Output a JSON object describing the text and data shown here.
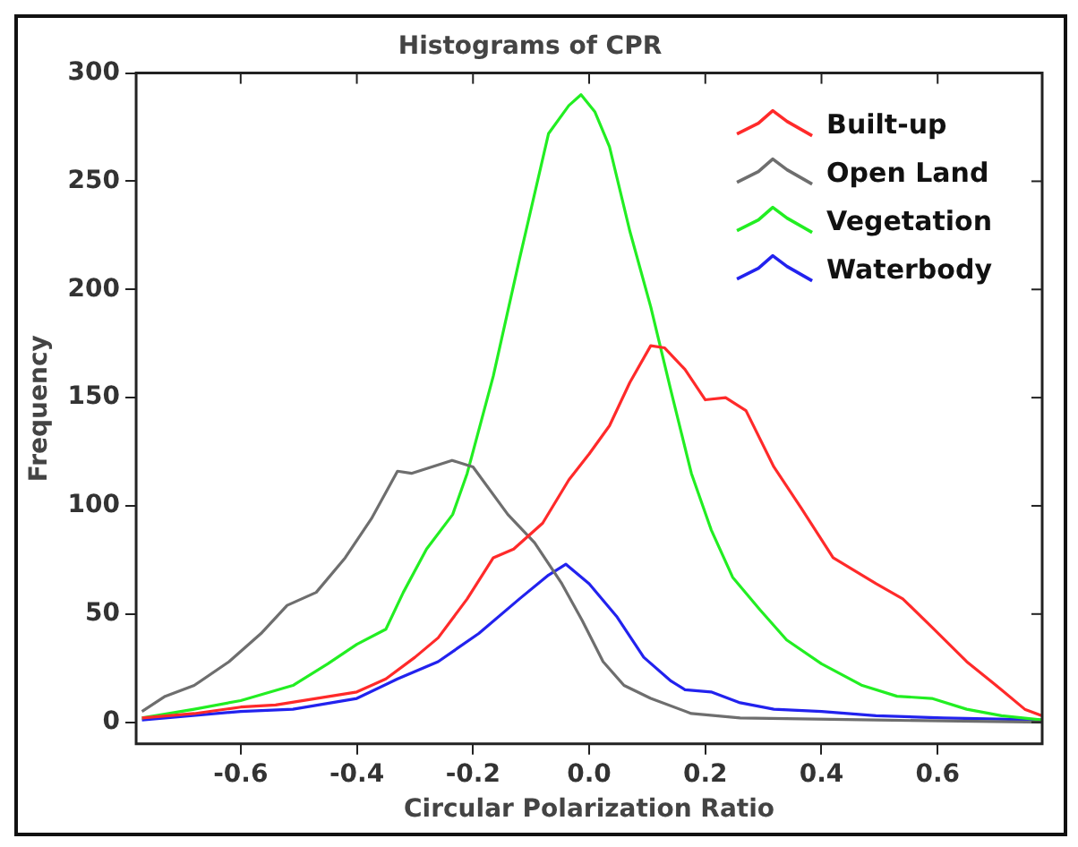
{
  "chart_data": {
    "type": "line",
    "title": "Histograms of CPR",
    "xlabel": "Circular Polarization Ratio",
    "ylabel": "Frequency",
    "xlim": [
      -0.78,
      0.78
    ],
    "xticks": [
      {
        "value": -0.6,
        "label": "-0.6"
      },
      {
        "value": -0.4,
        "label": "-0.4"
      },
      {
        "value": -0.2,
        "label": "-0.2"
      },
      {
        "value": 0,
        "label": "0.0"
      },
      {
        "value": 0.2,
        "label": "0.2"
      },
      {
        "value": 0.4,
        "label": "0.4"
      },
      {
        "value": 0.6,
        "label": "0.6"
      }
    ],
    "ylim": [
      -10,
      300
    ],
    "yticks": [
      0,
      50,
      100,
      150,
      200,
      250,
      300
    ],
    "grid": false,
    "legend": "top right",
    "marker": "none",
    "line_style": "solid",
    "series": [
      {
        "name": "Built-up",
        "color": "#ff2a2a",
        "x": [
          -0.77,
          -0.68,
          -0.6,
          -0.54,
          -0.47,
          -0.4,
          -0.35,
          -0.3,
          -0.26,
          -0.21,
          -0.165,
          -0.13,
          -0.08,
          -0.035,
          0.0,
          0.035,
          0.07,
          0.106,
          0.13,
          0.165,
          0.2,
          0.235,
          0.27,
          0.318,
          0.365,
          0.42,
          0.494,
          0.54,
          0.59,
          0.65,
          0.71,
          0.75,
          0.78
        ],
        "values": [
          2,
          4,
          7,
          8,
          11,
          14,
          20,
          30,
          39,
          57,
          76,
          80,
          92,
          112,
          124,
          137,
          157,
          174,
          173,
          163,
          149,
          150,
          144,
          118,
          99,
          76,
          64,
          57,
          44,
          28,
          15,
          6,
          3
        ]
      },
      {
        "name": "Open Land",
        "color": "#6e6e6e",
        "x": [
          -0.77,
          -0.73,
          -0.68,
          -0.62,
          -0.565,
          -0.52,
          -0.47,
          -0.42,
          -0.375,
          -0.33,
          -0.306,
          -0.236,
          -0.2,
          -0.14,
          -0.094,
          -0.047,
          -0.012,
          0.024,
          0.06,
          0.106,
          0.176,
          0.26,
          0.494,
          0.78
        ],
        "values": [
          5,
          12,
          17,
          28,
          41,
          54,
          60,
          76,
          94,
          116,
          115,
          121,
          118,
          96,
          83,
          64,
          47,
          28,
          17,
          11,
          4,
          2,
          1,
          0
        ]
      },
      {
        "name": "Vegetation",
        "color": "#22ee22",
        "x": [
          -0.77,
          -0.68,
          -0.6,
          -0.51,
          -0.45,
          -0.4,
          -0.35,
          -0.32,
          -0.28,
          -0.235,
          -0.21,
          -0.165,
          -0.12,
          -0.07,
          -0.035,
          -0.014,
          0.01,
          0.035,
          0.07,
          0.106,
          0.141,
          0.176,
          0.21,
          0.247,
          0.294,
          0.34,
          0.4,
          0.47,
          0.53,
          0.59,
          0.65,
          0.71,
          0.78
        ],
        "values": [
          2,
          6,
          10,
          17,
          27,
          36,
          43,
          60,
          80,
          96,
          115,
          160,
          214,
          272,
          285,
          290,
          282,
          266,
          227,
          192,
          153,
          115,
          89,
          67,
          52,
          38,
          27,
          17,
          12,
          11,
          6,
          3,
          1
        ]
      },
      {
        "name": "Waterbody",
        "color": "#2222ee",
        "x": [
          -0.77,
          -0.6,
          -0.51,
          -0.4,
          -0.33,
          -0.26,
          -0.19,
          -0.12,
          -0.07,
          -0.04,
          0.0,
          0.047,
          0.094,
          0.141,
          0.165,
          0.21,
          0.26,
          0.318,
          0.4,
          0.494,
          0.61,
          0.78
        ],
        "values": [
          1,
          5,
          6,
          11,
          20,
          28,
          41,
          57,
          68,
          73,
          64,
          49,
          30,
          19,
          15,
          14,
          9,
          6,
          5,
          3,
          2,
          1
        ]
      }
    ]
  }
}
